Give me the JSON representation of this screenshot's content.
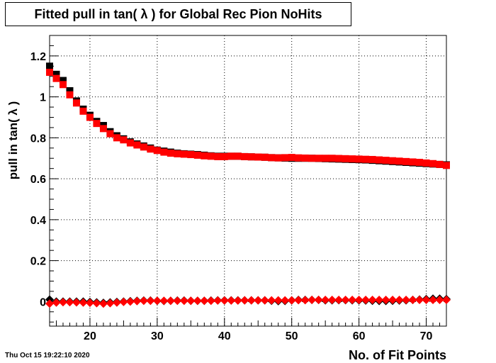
{
  "title": "Fitted pull in tan( λ ) for Global Rec Pion NoHits",
  "timestamp": "Thu Oct 15 19:22:10 2020",
  "chart_data": {
    "type": "scatter",
    "title": "Fitted pull in tan( λ ) for Global Rec Pion NoHits",
    "xlabel": "No. of Fit Points",
    "ylabel": "pull in tan( λ )",
    "xlim": [
      14,
      73
    ],
    "ylim": [
      -0.12,
      1.3
    ],
    "grid": true,
    "x_ticks": [
      20,
      30,
      40,
      50,
      60,
      70
    ],
    "y_ticks": [
      0,
      0.2,
      0.4,
      0.6,
      0.8,
      1,
      1.2
    ],
    "y_tick_labels": [
      "0",
      "0.2",
      "0.4",
      "0.6",
      "0.8",
      "1",
      "1.2"
    ],
    "x": [
      14,
      15,
      16,
      17,
      18,
      19,
      20,
      21,
      22,
      23,
      24,
      25,
      26,
      27,
      28,
      29,
      30,
      31,
      32,
      33,
      34,
      35,
      36,
      37,
      38,
      39,
      40,
      41,
      42,
      43,
      44,
      45,
      46,
      47,
      48,
      49,
      50,
      51,
      52,
      53,
      54,
      55,
      56,
      57,
      58,
      59,
      60,
      61,
      62,
      63,
      64,
      65,
      66,
      67,
      68,
      69,
      70,
      71,
      72,
      73
    ],
    "series": [
      {
        "color": "#000000",
        "marker": "square",
        "values": [
          1.15,
          1.11,
          1.08,
          1.03,
          0.98,
          0.94,
          0.91,
          0.88,
          0.86,
          0.83,
          0.81,
          0.795,
          0.78,
          0.77,
          0.76,
          0.75,
          0.74,
          0.735,
          0.73,
          0.725,
          0.722,
          0.72,
          0.718,
          0.715,
          0.712,
          0.71,
          0.71,
          0.71,
          0.71,
          0.708,
          0.707,
          0.706,
          0.705,
          0.703,
          0.702,
          0.701,
          0.7,
          0.7,
          0.7,
          0.7,
          0.699,
          0.698,
          0.697,
          0.696,
          0.695,
          0.694,
          0.693,
          0.692,
          0.69,
          0.688,
          0.686,
          0.684,
          0.682,
          0.68,
          0.678,
          0.676,
          0.674,
          0.672,
          0.67,
          0.668
        ]
      },
      {
        "color": "#ff0000",
        "marker": "square",
        "values": [
          1.12,
          1.09,
          1.06,
          1.01,
          0.97,
          0.93,
          0.9,
          0.87,
          0.845,
          0.82,
          0.8,
          0.79,
          0.775,
          0.765,
          0.755,
          0.745,
          0.738,
          0.73,
          0.725,
          0.722,
          0.72,
          0.718,
          0.715,
          0.712,
          0.71,
          0.708,
          0.708,
          0.71,
          0.71,
          0.708,
          0.707,
          0.706,
          0.705,
          0.703,
          0.702,
          0.703,
          0.704,
          0.702,
          0.701,
          0.7,
          0.7,
          0.7,
          0.7,
          0.699,
          0.698,
          0.697,
          0.696,
          0.695,
          0.694,
          0.692,
          0.69,
          0.688,
          0.686,
          0.684,
          0.682,
          0.68,
          0.677,
          0.674,
          0.67,
          0.665
        ]
      },
      {
        "color": "#000000",
        "marker": "diamond",
        "values": [
          0.01,
          0.0,
          0.0,
          0.0,
          0.0,
          0.0,
          -0.002,
          -0.004,
          -0.006,
          -0.004,
          -0.002,
          0.0,
          0.002,
          0.004,
          0.005,
          0.005,
          0.004,
          0.003,
          0.004,
          0.005,
          0.005,
          0.004,
          0.004,
          0.004,
          0.005,
          0.006,
          0.006,
          0.006,
          0.006,
          0.006,
          0.006,
          0.006,
          0.006,
          0.004,
          0.002,
          0.003,
          0.006,
          0.008,
          0.008,
          0.008,
          0.008,
          0.006,
          0.006,
          0.007,
          0.007,
          0.006,
          0.006,
          0.005,
          0.004,
          0.003,
          0.003,
          0.004,
          0.005,
          0.006,
          0.008,
          0.01,
          0.012,
          0.014,
          0.014,
          0.012
        ]
      },
      {
        "color": "#ff0000",
        "marker": "diamond",
        "values": [
          -0.01,
          -0.005,
          -0.003,
          -0.003,
          -0.004,
          -0.005,
          -0.006,
          -0.008,
          -0.01,
          -0.008,
          -0.005,
          -0.002,
          0.0,
          0.002,
          0.004,
          0.004,
          0.004,
          0.004,
          0.004,
          0.004,
          0.004,
          0.004,
          0.004,
          0.004,
          0.004,
          0.005,
          0.005,
          0.005,
          0.005,
          0.006,
          0.006,
          0.006,
          0.006,
          0.006,
          0.006,
          0.006,
          0.006,
          0.007,
          0.007,
          0.008,
          0.008,
          0.008,
          0.008,
          0.008,
          0.008,
          0.008,
          0.008,
          0.008,
          0.008,
          0.008,
          0.008,
          0.008,
          0.008,
          0.008,
          0.008,
          0.008,
          0.008,
          0.008,
          0.008,
          0.008
        ]
      }
    ]
  }
}
